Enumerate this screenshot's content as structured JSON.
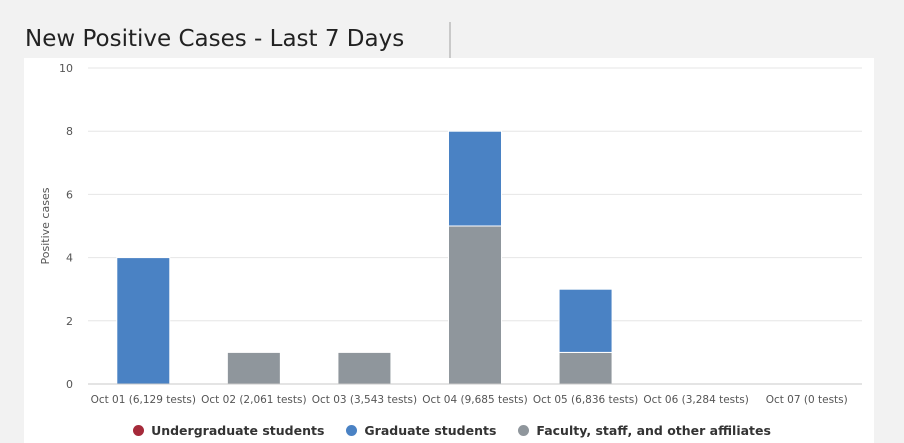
{
  "chart_data": {
    "type": "bar",
    "stacked": true,
    "title": "New Positive Cases - Last 7 Days",
    "ylabel": "Positive cases",
    "xlabel": "",
    "ylim": [
      0,
      10
    ],
    "yticks": [
      0,
      2,
      4,
      6,
      8,
      10
    ],
    "grid": true,
    "legend_position": "bottom",
    "categories": [
      "Oct 01 (6,129 tests)",
      "Oct 02 (2,061 tests)",
      "Oct 03 (3,543 tests)",
      "Oct 04 (9,685 tests)",
      "Oct 05 (6,836 tests)",
      "Oct 06 (3,284 tests)",
      "Oct 07 (0 tests)"
    ],
    "series": [
      {
        "name": "Undergraduate students",
        "color": "#a52a3a",
        "values": [
          0,
          0,
          0,
          0,
          0,
          0,
          0
        ]
      },
      {
        "name": "Graduate students",
        "color": "#4a82c4",
        "values": [
          4,
          0,
          0,
          3,
          2,
          0,
          0
        ]
      },
      {
        "name": "Faculty, staff, and other affiliates",
        "color": "#8f969c",
        "values": [
          0,
          1,
          1,
          5,
          1,
          0,
          0
        ]
      }
    ]
  }
}
